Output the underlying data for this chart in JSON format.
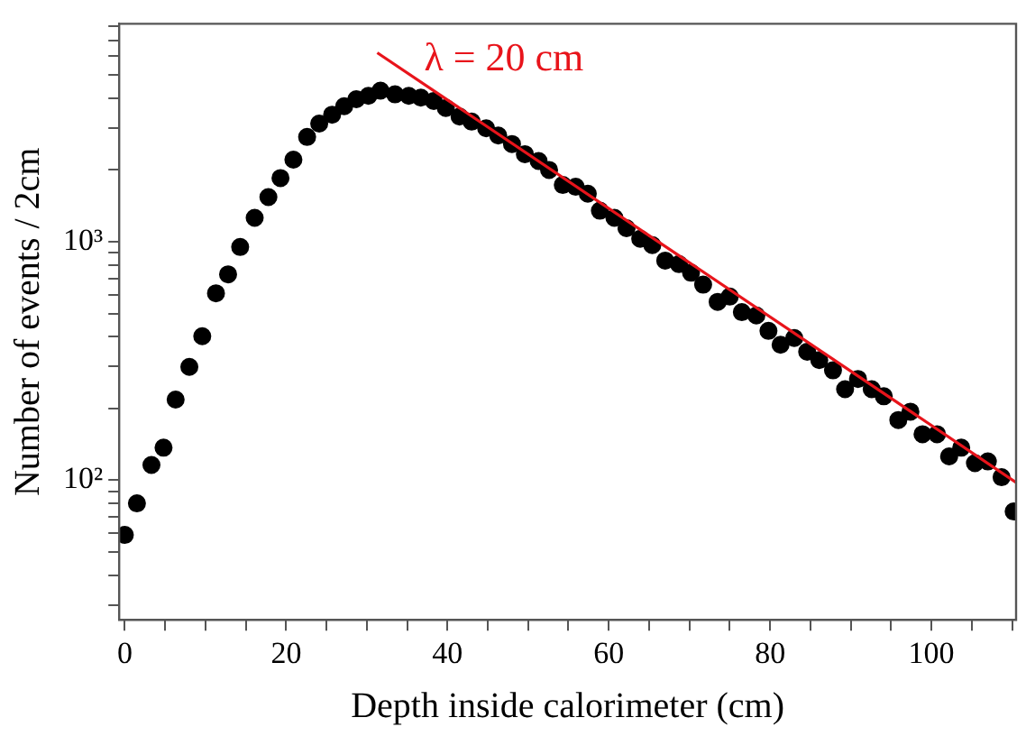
{
  "chart_data": {
    "type": "scatter",
    "xlabel": "Depth inside calorimeter (cm)",
    "ylabel": "Number of events / 2cm",
    "log": "y",
    "grid": false,
    "legend": false,
    "marker": "circle",
    "xlim": [
      -0.7,
      110.5
    ],
    "ylim": [
      26,
      8200
    ],
    "xticks": [
      0,
      {
        "value": 5,
        "label": null
      },
      {
        "value": 10,
        "label": null
      },
      {
        "value": 15,
        "label": null
      },
      20,
      {
        "value": 25,
        "label": null
      },
      {
        "value": 30,
        "label": null
      },
      {
        "value": 35,
        "label": null
      },
      40,
      {
        "value": 45,
        "label": null
      },
      {
        "value": 50,
        "label": null
      },
      {
        "value": 55,
        "label": null
      },
      60,
      {
        "value": 65,
        "label": null
      },
      {
        "value": 70,
        "label": null
      },
      {
        "value": 75,
        "label": null
      },
      80,
      {
        "value": 85,
        "label": null
      },
      {
        "value": 90,
        "label": null
      },
      {
        "value": 95,
        "label": null
      },
      100,
      {
        "value": 105,
        "label": null
      },
      {
        "value": 110,
        "label": null
      }
    ],
    "yticks": [
      {
        "value": 30,
        "label": null
      },
      {
        "value": 40,
        "label": null
      },
      {
        "value": 50,
        "label": null
      },
      {
        "value": 60,
        "label": null
      },
      {
        "value": 70,
        "label": null
      },
      {
        "value": 80,
        "label": null
      },
      {
        "value": 90,
        "label": null
      },
      {
        "value": 100,
        "label": "10²"
      },
      {
        "value": 200,
        "label": null
      },
      {
        "value": 300,
        "label": null
      },
      {
        "value": 400,
        "label": null
      },
      {
        "value": 500,
        "label": null
      },
      {
        "value": 600,
        "label": null
      },
      {
        "value": 700,
        "label": null
      },
      {
        "value": 800,
        "label": null
      },
      {
        "value": 900,
        "label": null
      },
      {
        "value": 1000,
        "label": "10³"
      },
      {
        "value": 2000,
        "label": null
      },
      {
        "value": 3000,
        "label": null
      },
      {
        "value": 4000,
        "label": null
      },
      {
        "value": 5000,
        "label": null
      },
      {
        "value": 6000,
        "label": null
      },
      {
        "value": 7000,
        "label": null
      },
      {
        "value": 8000,
        "label": null
      }
    ],
    "annotations": [
      "λ = 20 cm"
    ],
    "series": [
      {
        "type": "scatter",
        "color": "#000000",
        "x": [
          0.0,
          1.5,
          3.3,
          4.8,
          6.3,
          8.0,
          9.6,
          11.3,
          12.8,
          14.3,
          16.1,
          17.8,
          19.3,
          20.9,
          22.6,
          24.1,
          25.7,
          27.2,
          28.7,
          30.2,
          31.7,
          33.5,
          35.2,
          36.7,
          38.3,
          39.8,
          41.5,
          43.0,
          44.8,
          46.3,
          48.0,
          49.6,
          51.3,
          52.6,
          54.3,
          55.9,
          57.4,
          58.9,
          60.7,
          62.2,
          63.9,
          65.4,
          67.0,
          68.7,
          70.2,
          71.7,
          73.5,
          75.0,
          76.5,
          78.3,
          79.8,
          81.3,
          83.0,
          84.6,
          86.1,
          87.8,
          89.3,
          90.9,
          92.6,
          94.1,
          95.9,
          97.4,
          98.9,
          100.7,
          102.2,
          103.7,
          105.4,
          107.0,
          108.7,
          110.2
        ],
        "values": [
          59,
          80,
          116,
          137,
          218,
          299,
          402,
          608,
          730,
          951,
          1260,
          1540,
          1850,
          2210,
          2750,
          3130,
          3410,
          3700,
          3960,
          4090,
          4300,
          4150,
          4090,
          4020,
          3890,
          3640,
          3350,
          3190,
          2990,
          2790,
          2570,
          2330,
          2180,
          2000,
          1730,
          1700,
          1590,
          1350,
          1260,
          1140,
          1030,
          968,
          834,
          806,
          742,
          661,
          560,
          589,
          507,
          491,
          423,
          370,
          395,
          346,
          319,
          289,
          241,
          266,
          241,
          225,
          179,
          194,
          156,
          156,
          126,
          137,
          118,
          120,
          103,
          74
        ]
      },
      {
        "type": "line",
        "color": "#e8141b",
        "marker": "none",
        "line_style": "solid",
        "x": [
          31.3,
          110.5
        ],
        "values": [
          6200,
          98
        ]
      }
    ]
  }
}
